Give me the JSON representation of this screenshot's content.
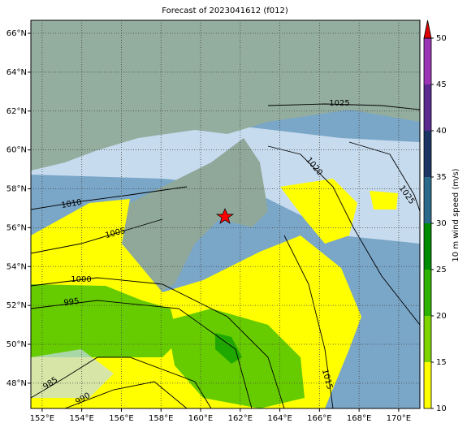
{
  "title": "Forecast of 2023041612 (f012)",
  "map": {
    "xlim": [
      151.43,
      171.07
    ],
    "ylim": [
      46.7,
      66.67
    ],
    "xticks": [
      {
        "value": 152,
        "label": "152°E"
      },
      {
        "value": 154,
        "label": "154°E"
      },
      {
        "value": 156,
        "label": "156°E"
      },
      {
        "value": 158,
        "label": "158°E"
      },
      {
        "value": 160,
        "label": "160°E"
      },
      {
        "value": 162,
        "label": "162°E"
      },
      {
        "value": 164,
        "label": "164°E"
      },
      {
        "value": 166,
        "label": "166°E"
      },
      {
        "value": 168,
        "label": "168°E"
      },
      {
        "value": 170,
        "label": "170°E"
      }
    ],
    "yticks": [
      {
        "value": 48,
        "label": "48°N"
      },
      {
        "value": 50,
        "label": "50°N"
      },
      {
        "value": 52,
        "label": "52°N"
      },
      {
        "value": 54,
        "label": "54°N"
      },
      {
        "value": 56,
        "label": "56°N"
      },
      {
        "value": 58,
        "label": "58°N"
      },
      {
        "value": 60,
        "label": "60°N"
      },
      {
        "value": 62,
        "label": "62°N"
      },
      {
        "value": 64,
        "label": "64°N"
      },
      {
        "value": 66,
        "label": "66°N"
      }
    ]
  },
  "contour_labels": [
    "1025",
    "1020",
    "1025",
    "1010",
    "1005",
    "1000",
    "995",
    "985",
    "990",
    "1015"
  ],
  "colorbar": {
    "label": "10 m wind speed (m/s)",
    "lim": [
      10,
      50
    ],
    "ticks": [
      10,
      15,
      20,
      25,
      30,
      35,
      40,
      45,
      50
    ],
    "colors": [
      "#ffff00",
      "#7fd400",
      "#2fb300",
      "#008c00",
      "#2b6a8a",
      "#1c3564",
      "#5b2a8f",
      "#9b35b5"
    ],
    "extend_color": "#e00000"
  }
}
